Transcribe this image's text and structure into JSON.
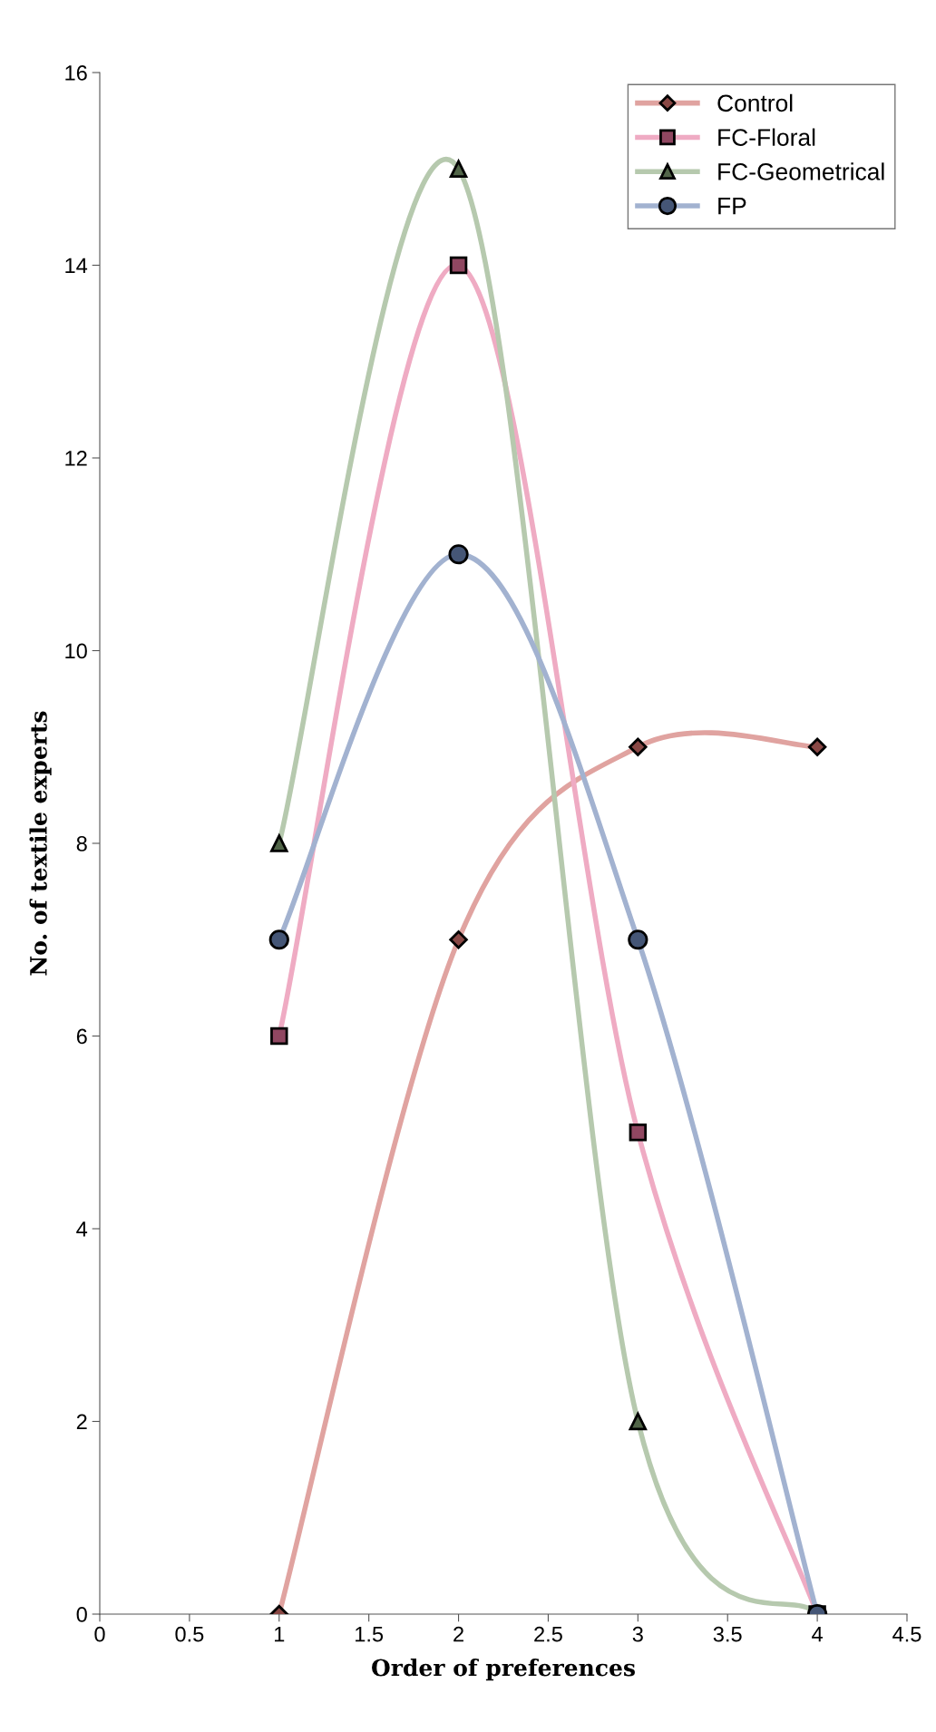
{
  "chart_data": {
    "type": "line",
    "xlabel": "Order of preferences",
    "ylabel": "No. of textile experts",
    "x": [
      1,
      2,
      3,
      4
    ],
    "series": [
      {
        "name": "Control",
        "color": "#e0a3a0",
        "marker": "diamond",
        "values": [
          0,
          7,
          9,
          9
        ]
      },
      {
        "name": "FC-Floral",
        "color": "#efabc3",
        "marker": "square",
        "values": [
          6,
          14,
          5,
          0
        ]
      },
      {
        "name": "FC-Geometrical",
        "color": "#b6c9ae",
        "marker": "triangle",
        "values": [
          8,
          15,
          2,
          0
        ]
      },
      {
        "name": "FP",
        "color": "#a2b2d0",
        "marker": "circle",
        "values": [
          7,
          11,
          7,
          0
        ]
      }
    ],
    "xlim": [
      0,
      4.5
    ],
    "xticks": [
      0,
      0.5,
      1,
      1.5,
      2,
      2.5,
      3,
      3.5,
      4,
      4.5
    ],
    "ylim": [
      0,
      16
    ],
    "yticks": [
      0,
      2,
      4,
      6,
      8,
      10,
      12,
      14,
      16
    ],
    "grid": false,
    "legend": "top right"
  }
}
